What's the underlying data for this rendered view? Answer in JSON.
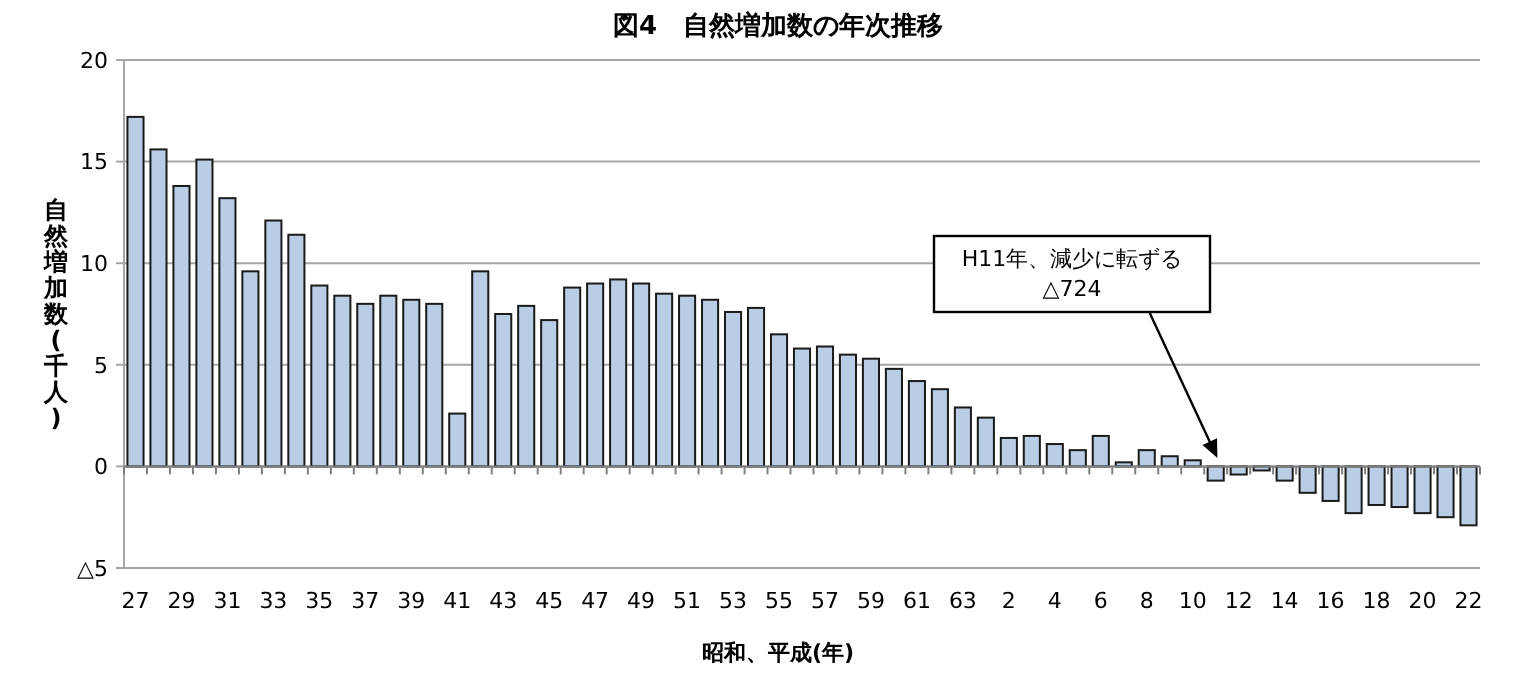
{
  "chart_data": {
    "type": "bar",
    "title": "図4　自然増加数の年次推移",
    "xlabel": "昭和、平成(年)",
    "ylabel": "自然増加数(千人)",
    "categories": [
      "27",
      null,
      "29",
      null,
      "31",
      null,
      "33",
      null,
      "35",
      null,
      "37",
      null,
      "39",
      null,
      "41",
      null,
      "43",
      null,
      "45",
      null,
      "47",
      null,
      "49",
      null,
      "51",
      null,
      "53",
      null,
      "55",
      null,
      "57",
      null,
      "59",
      null,
      "61",
      null,
      "63",
      null,
      "2",
      null,
      "4",
      null,
      "6",
      null,
      "8",
      null,
      "10",
      null,
      "12",
      null,
      "14",
      null,
      "16",
      null,
      "18",
      null,
      "20",
      null,
      "22"
    ],
    "values": [
      17.2,
      15.6,
      13.8,
      15.1,
      13.2,
      9.6,
      12.1,
      11.4,
      8.9,
      8.4,
      8.0,
      8.4,
      8.2,
      8.0,
      2.6,
      9.6,
      7.5,
      7.9,
      7.2,
      8.8,
      9.0,
      9.2,
      9.0,
      8.5,
      8.4,
      8.2,
      7.6,
      7.8,
      6.5,
      5.8,
      5.9,
      5.5,
      5.3,
      4.8,
      4.2,
      3.8,
      2.9,
      2.4,
      1.4,
      1.5,
      1.1,
      0.8,
      1.5,
      0.2,
      0.8,
      0.5,
      0.3,
      -0.7,
      -0.4,
      -0.2,
      -0.7,
      -1.3,
      -1.7,
      -2.3,
      -1.9,
      -2.0,
      -2.3,
      -2.5,
      -2.9
    ],
    "color": "#b9cde5",
    "ylim": [
      -5,
      20
    ],
    "yticks": [
      {
        "value": -5,
        "label": "△5"
      },
      0,
      5,
      10,
      15,
      20
    ],
    "grid": "y",
    "annotations": [
      "H11年、減少に転ずる\n△724"
    ]
  }
}
